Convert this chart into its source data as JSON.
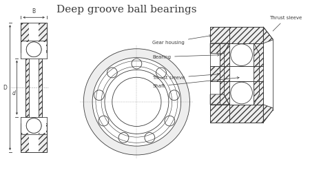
{
  "title": "Deep groove ball bearings",
  "title_font": "DejaVu Serif",
  "title_fontsize": 11,
  "line_color": "#3a3a3a",
  "bg_color": "#ffffff",
  "labels": {
    "thrust_sleeve_top": "Thrust sleeve",
    "gear_housing": "Gear housing",
    "bearing": "Bearing",
    "thrust_sleeve_mid": "Thrust sleeve",
    "shaft": "Shaft"
  },
  "dim_labels": {
    "B": "B",
    "D": "D",
    "d": "d"
  },
  "label_fontsize": 5.0,
  "dim_fontsize": 5.5,
  "lw": 0.6
}
